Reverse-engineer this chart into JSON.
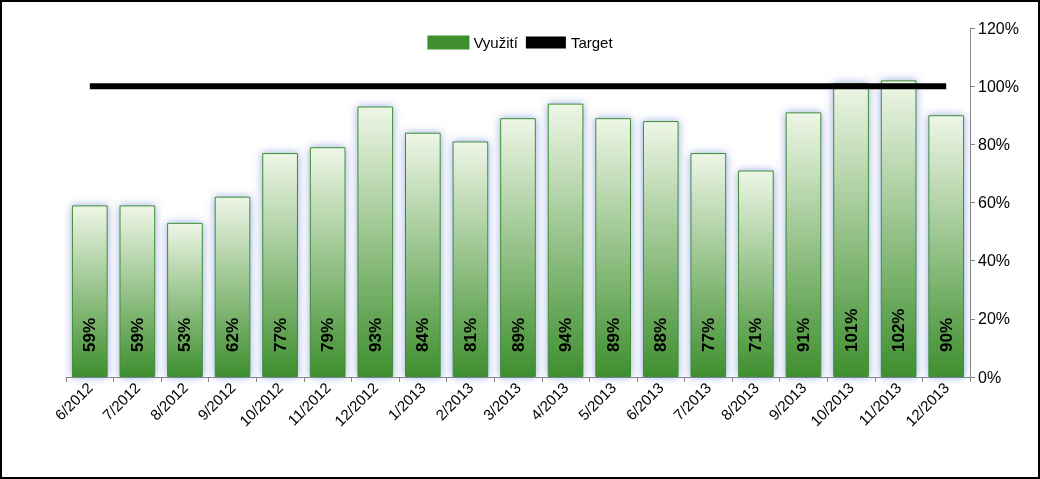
{
  "chart_data": {
    "type": "bar",
    "categories": [
      "6/2012",
      "7/2012",
      "8/2012",
      "9/2012",
      "10/2012",
      "11/2012",
      "12/2012",
      "1/2013",
      "2/2013",
      "3/2013",
      "4/2013",
      "5/2013",
      "6/2013",
      "7/2013",
      "8/2013",
      "9/2013",
      "10/2013",
      "11/2013",
      "12/2013"
    ],
    "series": [
      {
        "name": "Využití",
        "color": "#3f8f2f",
        "values": [
          59,
          59,
          53,
          62,
          77,
          79,
          93,
          84,
          81,
          89,
          94,
          89,
          88,
          77,
          71,
          91,
          101,
          102,
          90
        ],
        "value_labels": [
          "59%",
          "59%",
          "53%",
          "62%",
          "77%",
          "79%",
          "93%",
          "84%",
          "81%",
          "89%",
          "94%",
          "89%",
          "88%",
          "77%",
          "71%",
          "91%",
          "101%",
          "102%",
          "90%"
        ]
      },
      {
        "name": "Target",
        "type": "line",
        "color": "#000000",
        "marker": "none",
        "values": [
          100,
          100,
          100,
          100,
          100,
          100,
          100,
          100,
          100,
          100,
          100,
          100,
          100,
          100,
          100,
          100,
          100,
          100,
          100
        ]
      }
    ],
    "ylim": [
      0,
      120
    ],
    "yticks": [
      {
        "value": 0,
        "label": "0%"
      },
      {
        "value": 20,
        "label": "20%"
      },
      {
        "value": 40,
        "label": "40%"
      },
      {
        "value": 60,
        "label": "60%"
      },
      {
        "value": 80,
        "label": "80%"
      },
      {
        "value": 100,
        "label": "100%"
      },
      {
        "value": 120,
        "label": "120%"
      }
    ],
    "grid": false,
    "legend": "top"
  }
}
